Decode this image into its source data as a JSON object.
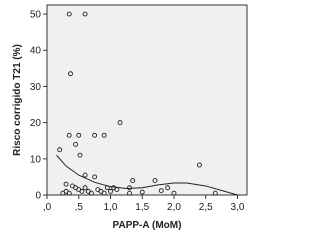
{
  "chart_data": {
    "type": "scatter",
    "x_label": "PAPP-A (MoM)",
    "y_label": "Risco corrigido T21 (%)",
    "xlim": [
      0,
      3.15
    ],
    "ylim": [
      0,
      52.5
    ],
    "xticks": [
      {
        "value": 0,
        "label": ",0"
      },
      {
        "value": 0.5,
        "label": ",5"
      },
      {
        "value": 1.0,
        "label": "1,0"
      },
      {
        "value": 1.5,
        "label": "1,5"
      },
      {
        "value": 2.0,
        "label": "2,0"
      },
      {
        "value": 2.5,
        "label": "2,5"
      },
      {
        "value": 3.0,
        "label": "3,0"
      }
    ],
    "yticks": [
      0,
      10,
      20,
      30,
      40,
      50
    ],
    "background": "#f0f0f0",
    "color": "#222222",
    "x": [
      0.35,
      0.6,
      0.37,
      0.45,
      0.5,
      0.52,
      0.35,
      0.75,
      0.9,
      1.15,
      0.2,
      0.6,
      0.75,
      2.4,
      1.35,
      1.7,
      0.3,
      0.4,
      0.45,
      0.5,
      0.55,
      0.6,
      0.65,
      0.7,
      0.8,
      0.85,
      0.9,
      1.0,
      1.05,
      1.1,
      1.3,
      1.5,
      1.8,
      1.9,
      2.0,
      2.65,
      0.25,
      0.3,
      0.35,
      0.95,
      1.3
    ],
    "values": [
      50,
      50,
      33.5,
      14,
      16.5,
      11,
      16.5,
      16.5,
      16.5,
      20,
      12.5,
      5.5,
      5,
      8.3,
      4,
      4,
      3,
      2.5,
      2,
      1.5,
      1,
      2,
      1,
      0.5,
      1.5,
      1,
      0.5,
      1,
      2,
      1.5,
      0.5,
      0.8,
      1.2,
      2,
      0.5,
      0.5,
      0.5,
      1,
      0.5,
      2,
      2
    ],
    "fit_line": {
      "x": [
        0.15,
        0.3,
        0.5,
        0.75,
        1.0,
        1.25,
        1.5,
        1.75,
        2.0,
        2.2,
        2.5,
        2.8,
        3.0,
        3.15
      ],
      "y": [
        11,
        8,
        5.5,
        3.5,
        2.3,
        1.8,
        2,
        2.8,
        3.3,
        3.3,
        2.5,
        1,
        0,
        -0.5
      ]
    }
  }
}
